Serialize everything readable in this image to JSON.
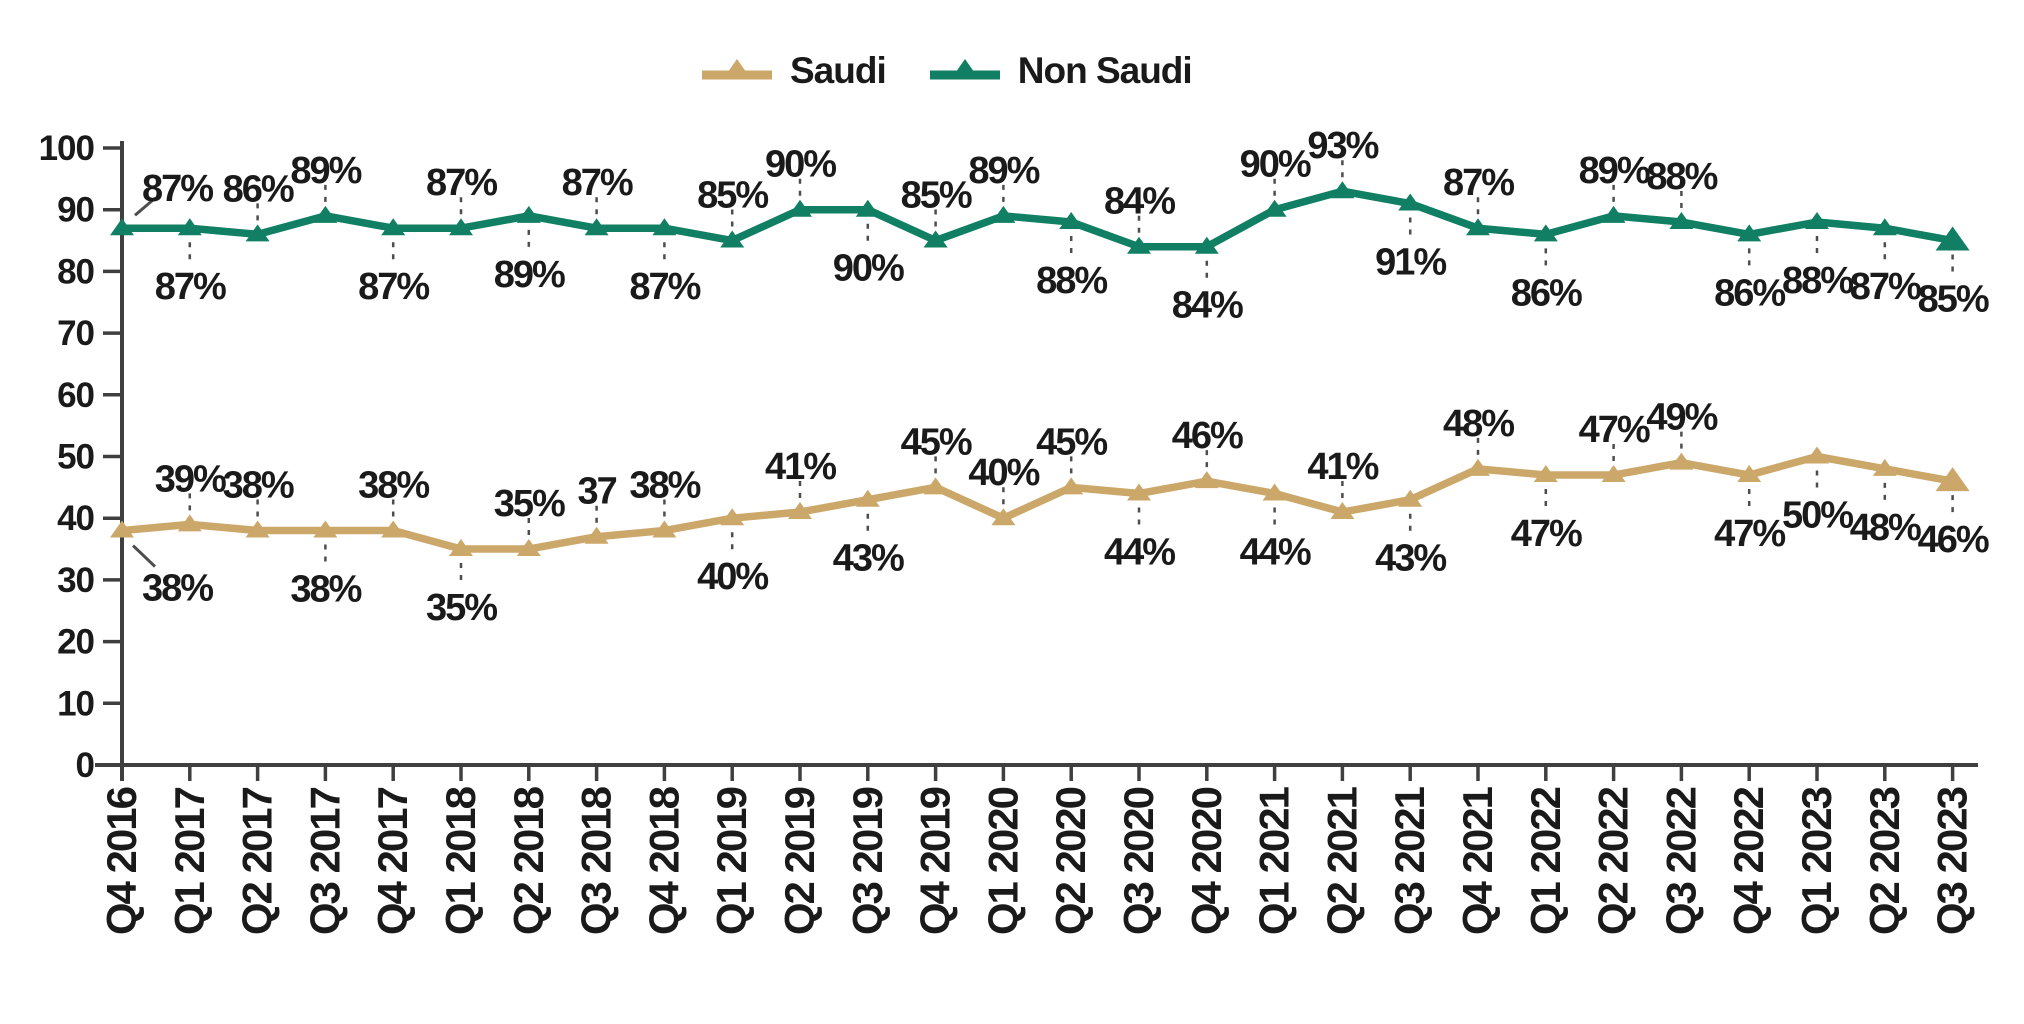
{
  "chart_data": {
    "type": "line",
    "title": "",
    "xlabel": "",
    "ylabel": "",
    "ylim": [
      0,
      100
    ],
    "yticks": [
      0,
      10,
      20,
      30,
      40,
      50,
      60,
      70,
      80,
      90,
      100
    ],
    "grid": false,
    "legend_position": "top",
    "categories": [
      "Q4 2016",
      "Q1 2017",
      "Q2 2017",
      "Q3 2017",
      "Q4 2017",
      "Q1 2018",
      "Q2 2018",
      "Q3 2018",
      "Q4 2018",
      "Q1 2019",
      "Q2 2019",
      "Q3 2019",
      "Q4 2019",
      "Q1 2020",
      "Q2 2020",
      "Q3 2020",
      "Q4 2020",
      "Q1 2021",
      "Q2 2021",
      "Q3 2021",
      "Q4 2021",
      "Q1 2022",
      "Q2 2022",
      "Q3 2022",
      "Q4 2022",
      "Q1 2023",
      "Q2 2023",
      "Q3 2023"
    ],
    "series": [
      {
        "name": "Saudi",
        "color": "#CCA76A",
        "values": [
          38,
          39,
          38,
          38,
          38,
          35,
          35,
          37,
          38,
          40,
          41,
          43,
          45,
          40,
          45,
          44,
          46,
          44,
          41,
          43,
          48,
          47,
          47,
          49,
          47,
          50,
          48,
          46
        ],
        "labels": [
          "38%",
          "39%",
          "38%",
          "38%",
          "38%",
          "35%",
          "35%",
          "37",
          "38%",
          "40%",
          "41%",
          "43%",
          "45%",
          "40%",
          "45%",
          "44%",
          "46%",
          "44%",
          "41%",
          "43%",
          "48%",
          "47%",
          "47%",
          "49%",
          "47%",
          "50%",
          "48%",
          "46%"
        ],
        "label_pos": [
          "below",
          "above",
          "above",
          "below",
          "above",
          "below",
          "above",
          "above",
          "above",
          "below",
          "above",
          "below",
          "above",
          "above",
          "above",
          "below",
          "above",
          "below",
          "above",
          "below",
          "above",
          "below",
          "above",
          "above",
          "below",
          "below",
          "below",
          "below"
        ]
      },
      {
        "name": "Non Saudi",
        "color": "#117F63",
        "values": [
          87,
          87,
          86,
          89,
          87,
          87,
          89,
          87,
          87,
          85,
          90,
          90,
          85,
          89,
          88,
          84,
          84,
          90,
          93,
          91,
          87,
          86,
          89,
          88,
          86,
          88,
          87,
          85
        ],
        "labels": [
          "87%",
          "87%",
          "86%",
          "89%",
          "87%",
          "87%",
          "89%",
          "87%",
          "87%",
          "85%",
          "90%",
          "90%",
          "85%",
          "89%",
          "88%",
          "84%",
          "84%",
          "90%",
          "93%",
          "91%",
          "87%",
          "86%",
          "89%",
          "88%",
          "86%",
          "88%",
          "87%",
          "85%"
        ],
        "label_pos": [
          "above",
          "below",
          "above",
          "above",
          "below",
          "above",
          "below",
          "above",
          "below",
          "above",
          "above",
          "below",
          "above",
          "above",
          "below",
          "above",
          "below",
          "above",
          "above",
          "below",
          "above",
          "below",
          "above",
          "above",
          "below",
          "below",
          "below",
          "below"
        ]
      }
    ]
  },
  "colors": {
    "axis": "#3f3f3f",
    "label_text": "#1a1a1a",
    "leader": "#4d4d4d",
    "background": "#ffffff"
  }
}
